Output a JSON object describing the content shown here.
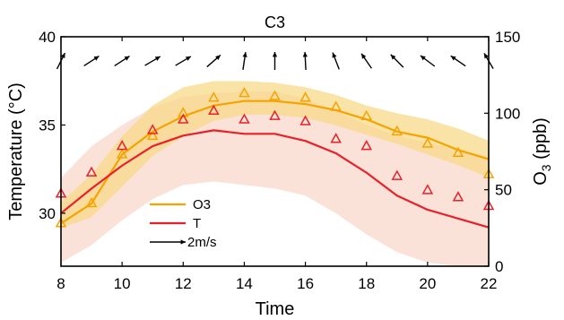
{
  "chart_data": {
    "type": "line",
    "title": "C3",
    "xlabel": "Time",
    "ylabel_left": "Temperature (°C)",
    "ylabel_right_base": "O",
    "ylabel_right_sub": "3",
    "ylabel_right_unit": " (ppb)",
    "xlim": [
      8,
      22
    ],
    "ylim_left": [
      27,
      40
    ],
    "ylim_right": [
      0,
      150
    ],
    "x_ticks": [
      8,
      10,
      12,
      14,
      16,
      18,
      20,
      22
    ],
    "y_left_ticks": [
      30,
      35,
      40
    ],
    "y_right_ticks": [
      0,
      50,
      100,
      150
    ],
    "colors": {
      "O3": "#f5a300",
      "T": "#e8202a",
      "O3_band": "#f8d98a",
      "T_band": "#f9d6c8"
    },
    "series": [
      {
        "name": "O3",
        "axis": "right",
        "line": [
          [
            8,
            28
          ],
          [
            9,
            41
          ],
          [
            10,
            73
          ],
          [
            11,
            88
          ],
          [
            12,
            98
          ],
          [
            13,
            105
          ],
          [
            14,
            108
          ],
          [
            15,
            108
          ],
          [
            16,
            106
          ],
          [
            17,
            102
          ],
          [
            18,
            96
          ],
          [
            19,
            88
          ],
          [
            20,
            84
          ],
          [
            21,
            76
          ],
          [
            22,
            70
          ]
        ],
        "markers": [
          [
            8,
            28
          ],
          [
            9,
            41
          ],
          [
            10,
            73
          ],
          [
            11,
            85
          ],
          [
            12,
            100
          ],
          [
            13,
            110
          ],
          [
            14,
            113
          ],
          [
            15,
            111
          ],
          [
            16,
            110
          ],
          [
            17,
            104
          ],
          [
            18,
            98
          ],
          [
            19,
            88
          ],
          [
            20,
            80
          ],
          [
            21,
            74
          ],
          [
            22,
            60
          ]
        ],
        "band_upper": [
          [
            8,
            42
          ],
          [
            9,
            60
          ],
          [
            10,
            85
          ],
          [
            11,
            105
          ],
          [
            12,
            117
          ],
          [
            13,
            121
          ],
          [
            14,
            121
          ],
          [
            15,
            120
          ],
          [
            16,
            117
          ],
          [
            17,
            112
          ],
          [
            18,
            105
          ],
          [
            19,
            100
          ],
          [
            20,
            96
          ],
          [
            21,
            90
          ],
          [
            22,
            82
          ]
        ],
        "band_lower": [
          [
            8,
            25
          ],
          [
            9,
            32
          ],
          [
            10,
            52
          ],
          [
            11,
            72
          ],
          [
            12,
            85
          ],
          [
            13,
            95
          ],
          [
            14,
            99
          ],
          [
            15,
            99
          ],
          [
            16,
            97
          ],
          [
            17,
            92
          ],
          [
            18,
            86
          ],
          [
            19,
            80
          ],
          [
            20,
            73
          ],
          [
            21,
            66
          ],
          [
            22,
            58
          ]
        ]
      },
      {
        "name": "T",
        "axis": "left",
        "line": [
          [
            8,
            30.0
          ],
          [
            9,
            31.4
          ],
          [
            10,
            32.7
          ],
          [
            11,
            33.8
          ],
          [
            12,
            34.4
          ],
          [
            13,
            34.7
          ],
          [
            14,
            34.5
          ],
          [
            15,
            34.5
          ],
          [
            16,
            34.1
          ],
          [
            17,
            33.4
          ],
          [
            18,
            32.3
          ],
          [
            19,
            31.0
          ],
          [
            20,
            30.2
          ],
          [
            21,
            29.7
          ],
          [
            22,
            29.2
          ]
        ],
        "markers": [
          [
            8,
            31.1
          ],
          [
            9,
            32.3
          ],
          [
            10,
            33.8
          ],
          [
            11,
            34.7
          ],
          [
            12,
            35.3
          ],
          [
            13,
            35.8
          ],
          [
            14,
            35.3
          ],
          [
            15,
            35.5
          ],
          [
            16,
            35.2
          ],
          [
            17,
            34.2
          ],
          [
            18,
            33.8
          ],
          [
            19,
            32.1
          ],
          [
            20,
            31.3
          ],
          [
            21,
            30.9
          ],
          [
            22,
            30.4
          ]
        ],
        "band_upper": [
          [
            8,
            32.0
          ],
          [
            9,
            33.8
          ],
          [
            10,
            35.0
          ],
          [
            11,
            36.0
          ],
          [
            12,
            36.6
          ],
          [
            13,
            36.8
          ],
          [
            14,
            36.9
          ],
          [
            15,
            36.9
          ],
          [
            16,
            36.5
          ],
          [
            17,
            35.8
          ],
          [
            18,
            35.0
          ],
          [
            19,
            34.4
          ],
          [
            20,
            34.0
          ],
          [
            21,
            33.6
          ],
          [
            22,
            33.2
          ]
        ],
        "band_lower": [
          [
            8,
            27.2
          ],
          [
            9,
            28.2
          ],
          [
            10,
            29.6
          ],
          [
            11,
            30.8
          ],
          [
            12,
            31.6
          ],
          [
            13,
            31.8
          ],
          [
            14,
            31.6
          ],
          [
            15,
            31.4
          ],
          [
            16,
            31.0
          ],
          [
            17,
            30.0
          ],
          [
            18,
            28.8
          ],
          [
            19,
            27.8
          ],
          [
            20,
            27.2
          ],
          [
            21,
            27.0
          ],
          [
            22,
            27.0
          ]
        ]
      }
    ],
    "wind": [
      {
        "x": 8,
        "u": 0.45,
        "v": 0.9
      },
      {
        "x": 9,
        "u": 0.85,
        "v": 0.55
      },
      {
        "x": 10,
        "u": 0.85,
        "v": 0.55
      },
      {
        "x": 11,
        "u": 0.85,
        "v": 0.5
      },
      {
        "x": 12,
        "u": 0.85,
        "v": 0.5
      },
      {
        "x": 13,
        "u": 0.75,
        "v": 0.65
      },
      {
        "x": 14,
        "u": 0.15,
        "v": 1.0
      },
      {
        "x": 15,
        "u": 0.0,
        "v": 1.0
      },
      {
        "x": 16,
        "u": -0.05,
        "v": 1.0
      },
      {
        "x": 17,
        "u": -0.35,
        "v": 0.9
      },
      {
        "x": 18,
        "u": -0.55,
        "v": 0.8
      },
      {
        "x": 19,
        "u": -0.7,
        "v": 0.7
      },
      {
        "x": 20,
        "u": -0.8,
        "v": 0.6
      },
      {
        "x": 21,
        "u": -0.8,
        "v": 0.55
      },
      {
        "x": 22,
        "u": -0.5,
        "v": 0.85
      }
    ],
    "legend": {
      "placement": "lower-left",
      "entries": [
        {
          "label": "O3",
          "kind": "line",
          "series": "O3"
        },
        {
          "label": "T",
          "kind": "line",
          "series": "T"
        },
        {
          "label": "2m/s",
          "kind": "arrow"
        }
      ]
    }
  }
}
